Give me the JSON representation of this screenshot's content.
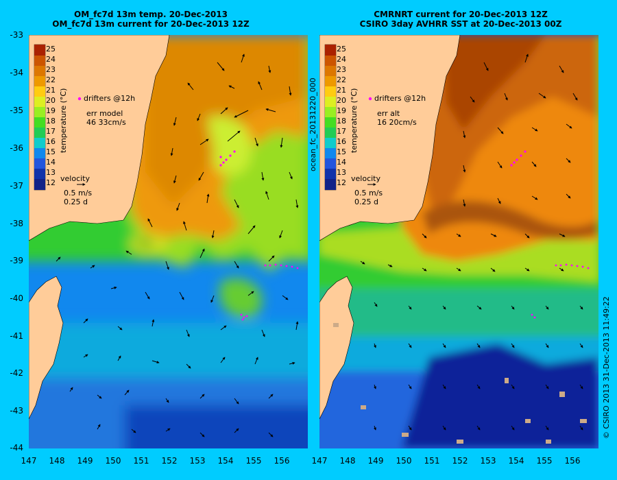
{
  "left": {
    "title_line1": "OM_fc7d 13m temp. 20-Dec-2013",
    "title_line2": "OM_fc7d 13m current for 20-Dec-2013 12Z",
    "drifters_label": "drifters @12h",
    "err_label": "err model",
    "err_values": "46 33cm/s",
    "velocity_label": "velocity",
    "velocity_speed": "0.5 m/s",
    "velocity_time": "0.25 d",
    "colorbar_label": "temperature (°C)"
  },
  "right": {
    "title_line1": "CMRNRT current for 20-Dec-2013 12Z",
    "title_line2": "CSIRO 3day AVHRR SST at 20-Dec-2013 00Z",
    "drifters_label": "drifters @12h",
    "err_label": "err alt",
    "err_values": "16 20cm/s",
    "velocity_label": "velocity",
    "velocity_speed": "0.5 m/s",
    "velocity_time": "0.25 d",
    "colorbar_label": "temperature (°C)"
  },
  "colorbar_ticks": [
    "25",
    "24",
    "23",
    "22",
    "21",
    "20",
    "19",
    "18",
    "17",
    "16",
    "15",
    "14",
    "13",
    "12"
  ],
  "lat_labels": [
    "-33",
    "-34",
    "-35",
    "-36",
    "-37",
    "-38",
    "-39",
    "-40",
    "-41",
    "-42",
    "-43",
    "-44"
  ],
  "lon_labels": [
    "147",
    "148",
    "149",
    "150",
    "151",
    "152",
    "153",
    "154",
    "155",
    "156"
  ],
  "side_label": "ocean_fc_20131220_000",
  "copyright": "© CSIRO 2013  31-Dec-2013 11:49:22",
  "colors": {
    "background": "#00ccff",
    "land": "#ffcc99",
    "drifters": "#ff00ff"
  }
}
